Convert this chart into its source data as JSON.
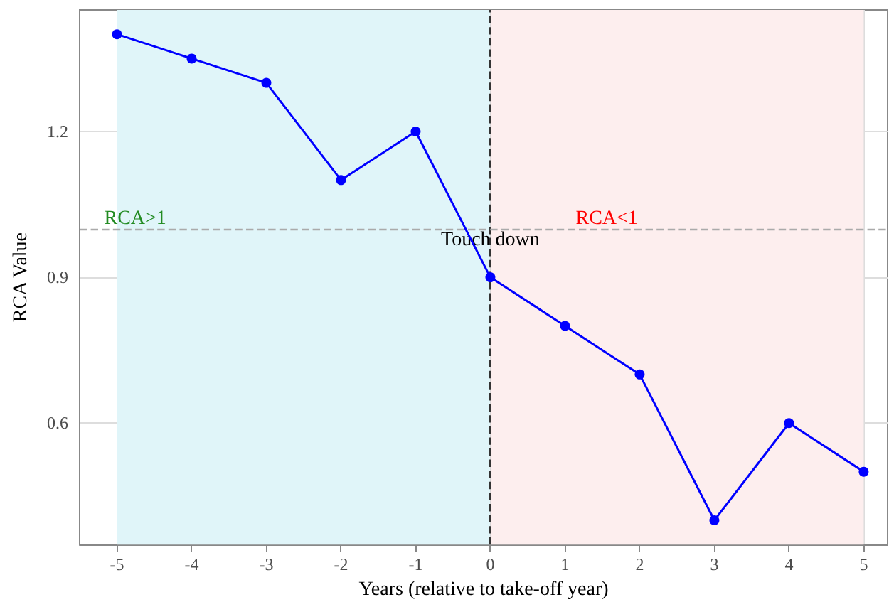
{
  "chart_data": {
    "type": "line",
    "xlabel": "Years (relative to take-off year)",
    "ylabel": "RCA Value",
    "x": [
      -5,
      -4,
      -3,
      -2,
      -1,
      0,
      1,
      2,
      3,
      4,
      5
    ],
    "series": [
      {
        "color": "#0000ff",
        "values": [
          1.4,
          1.35,
          1.3,
          1.1,
          1.2,
          0.9,
          0.8,
          0.7,
          0.4,
          0.6,
          0.5
        ]
      }
    ],
    "xlim": [
      -5.5,
      5.32
    ],
    "xticks": [
      -5,
      -4,
      -3,
      -2,
      -1,
      0,
      1,
      2,
      3,
      4,
      5
    ],
    "ylim": [
      0.35,
      1.45
    ],
    "yticks": [
      0.6,
      0.9,
      1.2
    ],
    "bands": [
      {
        "axis": "x",
        "from": -5,
        "to": 0,
        "color": "#e0f5f9",
        "label": "RCA>1"
      },
      {
        "axis": "x",
        "from": 0,
        "to": 5,
        "color": "#fdeeee",
        "label": "RCA<1"
      }
    ],
    "ref_lines": [
      {
        "axis": "x",
        "value": 0,
        "color": "#333333",
        "line_style": "dashed"
      },
      {
        "axis": "y",
        "value": 1,
        "color": "#aaaaaa",
        "line_style": "dashed"
      }
    ],
    "annotations": [
      {
        "text": "Touch down",
        "x": 0,
        "y": 0.976
      }
    ],
    "grid": true,
    "marker": "circle",
    "line_style": "solid"
  }
}
